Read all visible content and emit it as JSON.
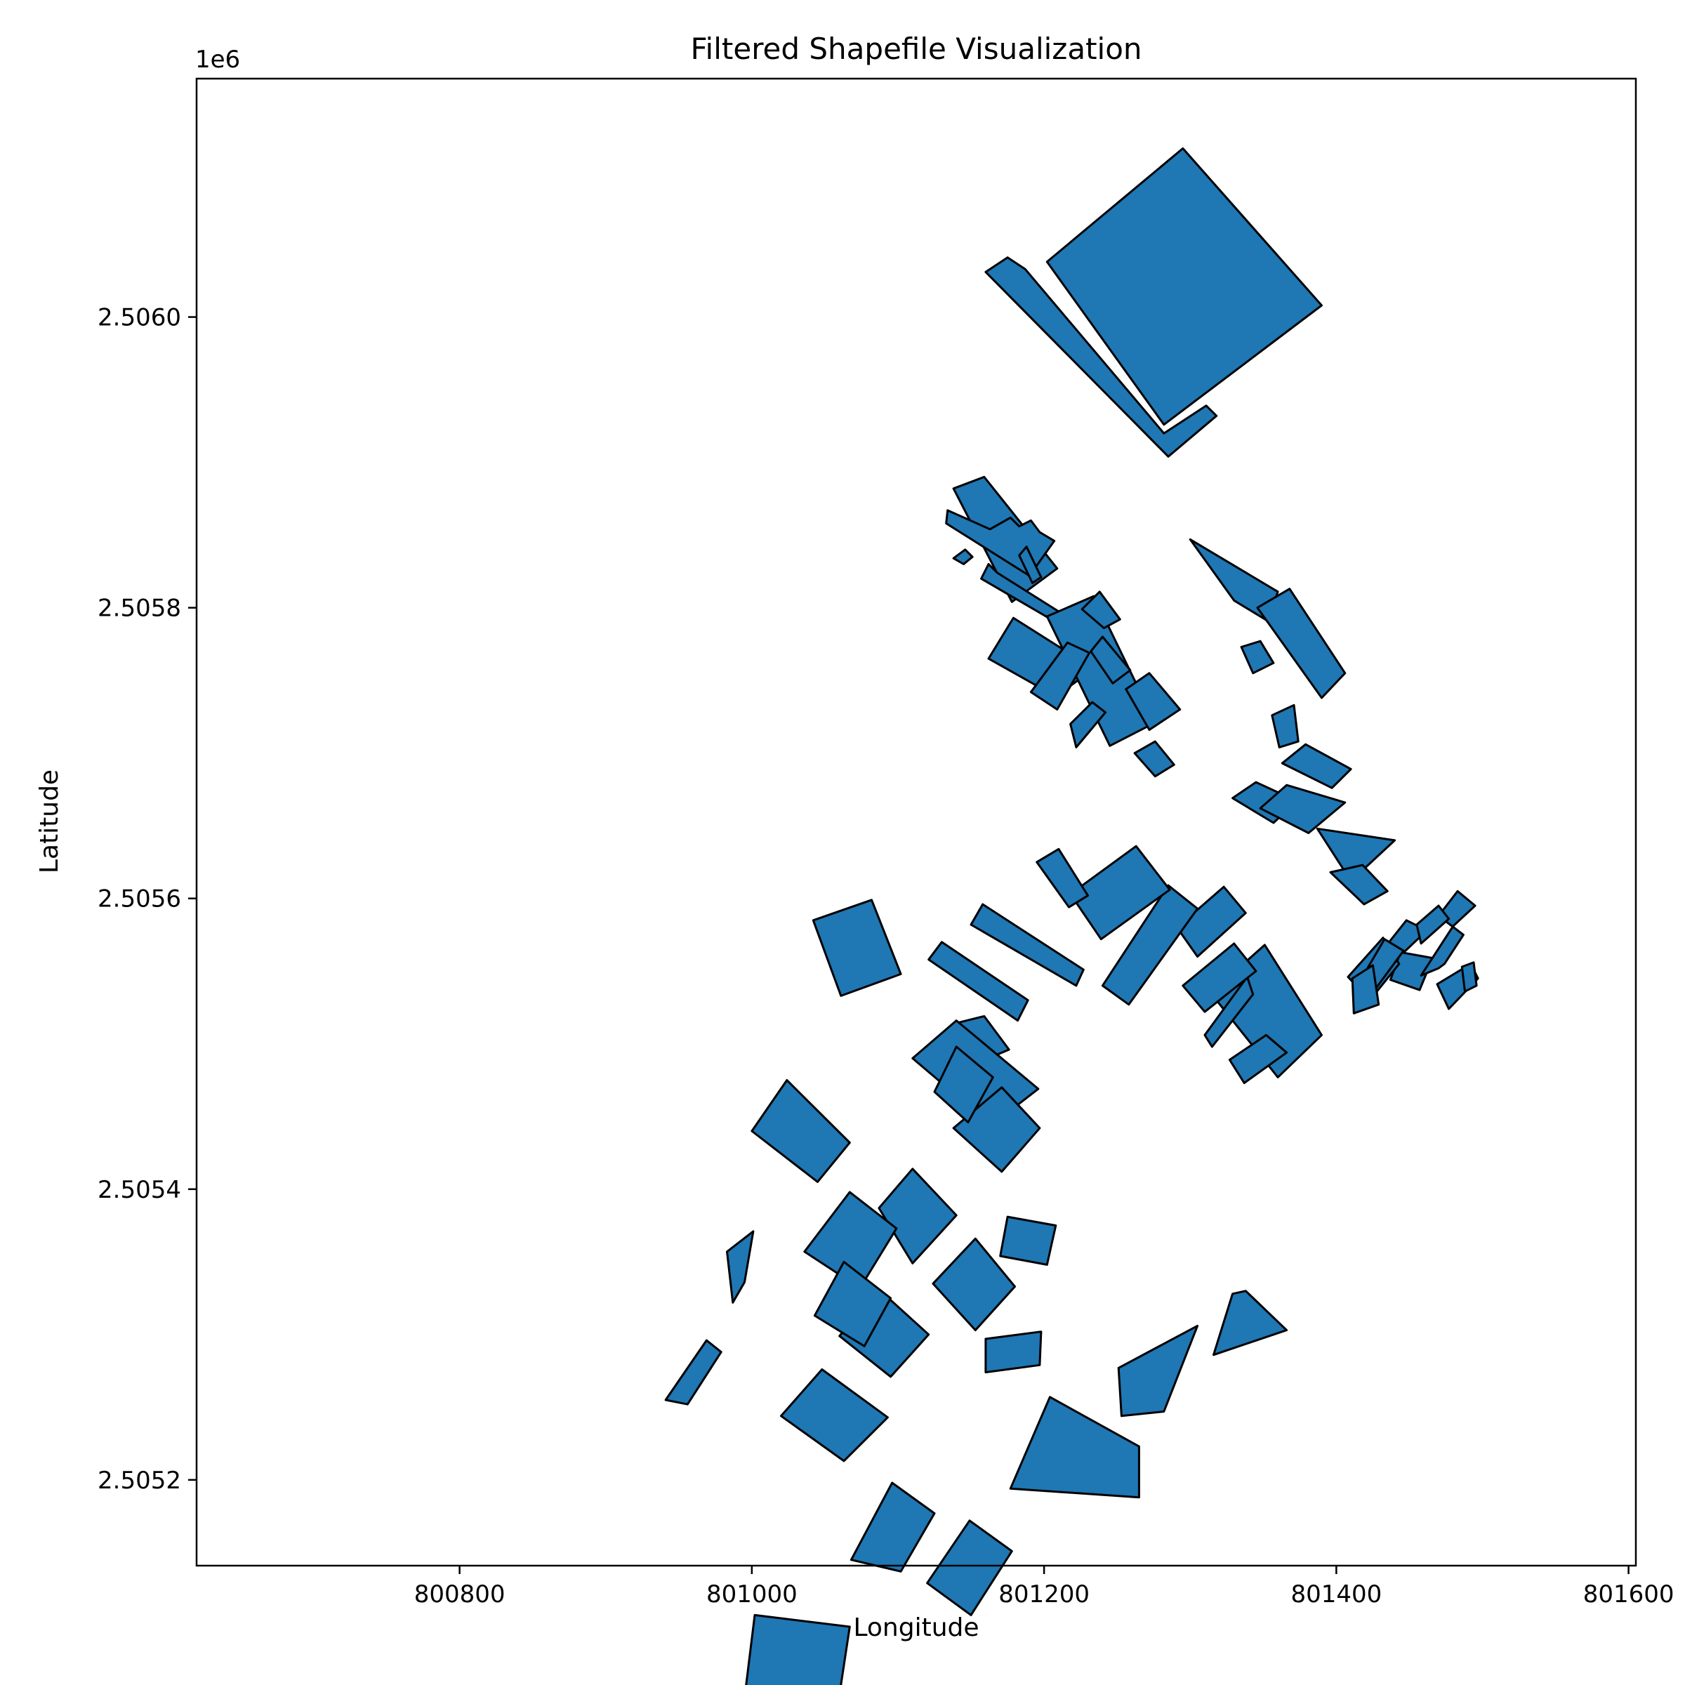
{
  "chart_data": {
    "type": "map",
    "title": "Filtered Shapefile Visualization",
    "xlabel": "Longitude",
    "ylabel": "Latitude",
    "y_offset_label": "1e6",
    "xticks": [
      {
        "value": 800800,
        "label": "800800"
      },
      {
        "value": 801000,
        "label": "801000"
      },
      {
        "value": 801200,
        "label": "801200"
      },
      {
        "value": 801400,
        "label": "801400"
      },
      {
        "value": 801600,
        "label": "801600"
      }
    ],
    "yticks": [
      {
        "value": 2505200,
        "label": "2.5052"
      },
      {
        "value": 2505400,
        "label": "2.5054"
      },
      {
        "value": 2505600,
        "label": "2.5056"
      },
      {
        "value": 2505800,
        "label": "2.5058"
      },
      {
        "value": 2506000,
        "label": "2.5060"
      }
    ],
    "xlim": [
      800620,
      801605
    ],
    "ylim": [
      2505141,
      2506164
    ],
    "fill_color": "#1f77b4",
    "edge_color": "#000000",
    "polygons": [
      [
        [
          801295,
          2506116
        ],
        [
          801390,
          2506008
        ],
        [
          801282,
          2505926
        ],
        [
          801202,
          2506038
        ]
      ],
      [
        [
          801175,
          2506041
        ],
        [
          801187,
          2506033
        ],
        [
          801282,
          2505920
        ],
        [
          801311,
          2505939
        ],
        [
          801318,
          2505932
        ],
        [
          801285,
          2505904
        ],
        [
          801160,
          2506031
        ]
      ],
      [
        [
          801138,
          2505882
        ],
        [
          801159,
          2505890
        ],
        [
          801209,
          2505827
        ],
        [
          801178,
          2505804
        ]
      ],
      [
        [
          801163,
          2505854
        ],
        [
          801177,
          2505862
        ],
        [
          801183,
          2505856
        ],
        [
          801191,
          2505860
        ],
        [
          801197,
          2505852
        ],
        [
          801207,
          2505846
        ],
        [
          801190,
          2505822
        ],
        [
          801133,
          2505858
        ],
        [
          801134,
          2505867
        ]
      ],
      [
        [
          801138,
          2505834
        ],
        [
          801146,
          2505840
        ],
        [
          801151,
          2505835
        ],
        [
          801145,
          2505830
        ]
      ],
      [
        [
          801168,
          2505824
        ],
        [
          801217,
          2505793
        ],
        [
          801210,
          2505789
        ],
        [
          801157,
          2505820
        ],
        [
          801162,
          2505830
        ]
      ],
      [
        [
          801179,
          2505793
        ],
        [
          801234,
          2505758
        ],
        [
          801208,
          2505739
        ],
        [
          801162,
          2505765
        ]
      ],
      [
        [
          801183,
          2505836
        ],
        [
          801188,
          2505842
        ],
        [
          801198,
          2505821
        ],
        [
          801192,
          2505817
        ]
      ],
      [
        [
          801202,
          2505794
        ],
        [
          801234,
          2505808
        ],
        [
          801276,
          2505721
        ],
        [
          801245,
          2505705
        ]
      ],
      [
        [
          801226,
          2505799
        ],
        [
          801238,
          2505811
        ],
        [
          801252,
          2505792
        ],
        [
          801241,
          2505786
        ]
      ],
      [
        [
          801216,
          2505776
        ],
        [
          801231,
          2505769
        ],
        [
          801209,
          2505730
        ],
        [
          801191,
          2505742
        ]
      ],
      [
        [
          801218,
          2505720
        ],
        [
          801233,
          2505735
        ],
        [
          801242,
          2505728
        ],
        [
          801222,
          2505704
        ]
      ],
      [
        [
          801232,
          2505770
        ],
        [
          801240,
          2505780
        ],
        [
          801259,
          2505757
        ],
        [
          801247,
          2505748
        ]
      ],
      [
        [
          801256,
          2505744
        ],
        [
          801272,
          2505755
        ],
        [
          801293,
          2505730
        ],
        [
          801272,
          2505716
        ]
      ],
      [
        [
          801262,
          2505700
        ],
        [
          801276,
          2505708
        ],
        [
          801289,
          2505692
        ],
        [
          801276,
          2505684
        ]
      ],
      [
        [
          801300,
          2505847
        ],
        [
          801360,
          2505811
        ],
        [
          801353,
          2505791
        ],
        [
          801330,
          2505805
        ]
      ],
      [
        [
          801335,
          2505773
        ],
        [
          801348,
          2505777
        ],
        [
          801357,
          2505762
        ],
        [
          801343,
          2505755
        ]
      ],
      [
        [
          801356,
          2505726
        ],
        [
          801371,
          2505733
        ],
        [
          801374,
          2505708
        ],
        [
          801361,
          2505704
        ]
      ],
      [
        [
          801368,
          2505813
        ],
        [
          801406,
          2505755
        ],
        [
          801390,
          2505738
        ],
        [
          801346,
          2505800
        ]
      ],
      [
        [
          801379,
          2505706
        ],
        [
          801410,
          2505689
        ],
        [
          801397,
          2505676
        ],
        [
          801363,
          2505693
        ]
      ],
      [
        [
          801345,
          2505680
        ],
        [
          801373,
          2505667
        ],
        [
          801357,
          2505652
        ],
        [
          801329,
          2505669
        ]
      ],
      [
        [
          801406,
          2505666
        ],
        [
          801381,
          2505645
        ],
        [
          801348,
          2505662
        ],
        [
          801366,
          2505678
        ]
      ],
      [
        [
          801440,
          2505640
        ],
        [
          801410,
          2505612
        ],
        [
          801387,
          2505648
        ]
      ],
      [
        [
          801418,
          2505623
        ],
        [
          801435,
          2505605
        ],
        [
          801419,
          2505596
        ],
        [
          801396,
          2505618
        ]
      ],
      [
        [
          801448,
          2505585
        ],
        [
          801462,
          2505578
        ],
        [
          801440,
          2505557
        ],
        [
          801433,
          2505566
        ]
      ],
      [
        [
          801444,
          2505563
        ],
        [
          801466,
          2505559
        ],
        [
          801457,
          2505537
        ],
        [
          801437,
          2505544
        ]
      ],
      [
        [
          801458,
          2505547
        ],
        [
          801480,
          2505581
        ],
        [
          801495,
          2505595
        ],
        [
          801483,
          2505605
        ],
        [
          801470,
          2505588
        ],
        [
          801487,
          2505575
        ],
        [
          801474,
          2505555
        ],
        [
          801470,
          2505552
        ]
      ],
      [
        [
          801477,
          2505524
        ],
        [
          801497,
          2505545
        ],
        [
          801492,
          2505555
        ],
        [
          801469,
          2505541
        ]
      ],
      [
        [
          801458,
          2505569
        ],
        [
          801477,
          2505586
        ],
        [
          801470,
          2505595
        ],
        [
          801455,
          2505582
        ]
      ],
      [
        [
          801486,
          2505553
        ],
        [
          801494,
          2505556
        ],
        [
          801496,
          2505540
        ],
        [
          801488,
          2505536
        ]
      ],
      [
        [
          801423,
          2505530
        ],
        [
          801443,
          2505555
        ],
        [
          801432,
          2505573
        ],
        [
          801408,
          2505546
        ]
      ],
      [
        [
          801433,
          2505572
        ],
        [
          801446,
          2505564
        ],
        [
          801427,
          2505538
        ],
        [
          801419,
          2505548
        ]
      ],
      [
        [
          801411,
          2505545
        ],
        [
          801425,
          2505554
        ],
        [
          801429,
          2505527
        ],
        [
          801412,
          2505521
        ]
      ],
      [
        [
          801314,
          2505535
        ],
        [
          801351,
          2505568
        ],
        [
          801390,
          2505506
        ],
        [
          801360,
          2505477
        ]
      ],
      [
        [
          801327,
          2505489
        ],
        [
          801352,
          2505506
        ],
        [
          801366,
          2505494
        ],
        [
          801337,
          2505473
        ]
      ],
      [
        [
          801310,
          2505506
        ],
        [
          801339,
          2505546
        ],
        [
          801343,
          2505534
        ],
        [
          801315,
          2505498
        ]
      ],
      [
        [
          801305,
          2505560
        ],
        [
          801291,
          2505580
        ],
        [
          801323,
          2505608
        ],
        [
          801338,
          2505590
        ]
      ],
      [
        [
          801310,
          2505522
        ],
        [
          801295,
          2505540
        ],
        [
          801330,
          2505569
        ],
        [
          801345,
          2505550
        ]
      ],
      [
        [
          801240,
          2505540
        ],
        [
          801258,
          2505527
        ],
        [
          801305,
          2505593
        ],
        [
          801285,
          2505609
        ]
      ],
      [
        [
          801218,
          2505603
        ],
        [
          801263,
          2505636
        ],
        [
          801286,
          2505606
        ],
        [
          801239,
          2505572
        ]
      ],
      [
        [
          801195,
          2505625
        ],
        [
          801210,
          2505634
        ],
        [
          801230,
          2505602
        ],
        [
          801217,
          2505594
        ]
      ],
      [
        [
          801150,
          2505582
        ],
        [
          801158,
          2505596
        ],
        [
          801227,
          2505551
        ],
        [
          801222,
          2505540
        ]
      ],
      [
        [
          801121,
          2505558
        ],
        [
          801130,
          2505570
        ],
        [
          801189,
          2505530
        ],
        [
          801182,
          2505516
        ]
      ],
      [
        [
          801042,
          2505585
        ],
        [
          801082,
          2505599
        ],
        [
          801102,
          2505548
        ],
        [
          801061,
          2505533
        ]
      ],
      [
        [
          801139,
          2505514
        ],
        [
          801159,
          2505519
        ],
        [
          801176,
          2505496
        ],
        [
          801157,
          2505488
        ]
      ],
      [
        [
          801110,
          2505490
        ],
        [
          801140,
          2505516
        ],
        [
          801196,
          2505469
        ],
        [
          801164,
          2505444
        ]
      ],
      [
        [
          801138,
          2505442
        ],
        [
          801171,
          2505470
        ],
        [
          801197,
          2505442
        ],
        [
          801171,
          2505412
        ]
      ],
      [
        [
          801087,
          2505387
        ],
        [
          801110,
          2505414
        ],
        [
          801140,
          2505382
        ],
        [
          801110,
          2505349
        ]
      ],
      [
        [
          801124,
          2505335
        ],
        [
          801153,
          2505366
        ],
        [
          801180,
          2505333
        ],
        [
          801153,
          2505303
        ]
      ],
      [
        [
          801060,
          2505299
        ],
        [
          801087,
          2505331
        ],
        [
          801121,
          2505300
        ],
        [
          801095,
          2505271
        ]
      ],
      [
        [
          801020,
          2505244
        ],
        [
          801048,
          2505276
        ],
        [
          801093,
          2505243
        ],
        [
          801063,
          2505213
        ]
      ],
      [
        [
          801036,
          2505357
        ],
        [
          801067,
          2505398
        ],
        [
          801099,
          2505373
        ],
        [
          801074,
          2505332
        ]
      ],
      [
        [
          801043,
          2505313
        ],
        [
          801063,
          2505350
        ],
        [
          801095,
          2505325
        ],
        [
          801077,
          2505292
        ]
      ],
      [
        [
          801000,
          2505440
        ],
        [
          801024,
          2505475
        ],
        [
          801067,
          2505432
        ],
        [
          801045,
          2505405
        ]
      ],
      [
        [
          801125,
          2505467
        ],
        [
          801140,
          2505498
        ],
        [
          801165,
          2505477
        ],
        [
          801148,
          2505446
        ]
      ],
      [
        [
          801170,
          2505354
        ],
        [
          801175,
          2505381
        ],
        [
          801208,
          2505375
        ],
        [
          801202,
          2505348
        ]
      ],
      [
        [
          801160,
          2505274
        ],
        [
          801160,
          2505297
        ],
        [
          801198,
          2505302
        ],
        [
          801197,
          2505279
        ]
      ],
      [
        [
          801177,
          2505194
        ],
        [
          801204,
          2505257
        ],
        [
          801265,
          2505223
        ],
        [
          801265,
          2505188
        ]
      ],
      [
        [
          801253,
          2505244
        ],
        [
          801251,
          2505277
        ],
        [
          801305,
          2505306
        ],
        [
          801282,
          2505247
        ]
      ],
      [
        [
          801316,
          2505286
        ],
        [
          801329,
          2505328
        ],
        [
          801338,
          2505330
        ],
        [
          801366,
          2505303
        ]
      ],
      [
        [
          800987,
          2505322
        ],
        [
          800983,
          2505357
        ],
        [
          801001,
          2505371
        ],
        [
          800995,
          2505336
        ]
      ],
      [
        [
          800941,
          2505255
        ],
        [
          800969,
          2505296
        ],
        [
          800979,
          2505288
        ],
        [
          800956,
          2505252
        ]
      ],
      [
        [
          801068,
          2505145
        ],
        [
          801096,
          2505198
        ],
        [
          801125,
          2505177
        ],
        [
          801102,
          2505137
        ]
      ],
      [
        [
          801120,
          2505129
        ],
        [
          801149,
          2505172
        ],
        [
          801178,
          2505151
        ],
        [
          801150,
          2505107
        ]
      ],
      [
        [
          800996,
          2505058
        ],
        [
          801002,
          2505107
        ],
        [
          801067,
          2505099
        ],
        [
          801059,
          2505046
        ]
      ]
    ]
  }
}
